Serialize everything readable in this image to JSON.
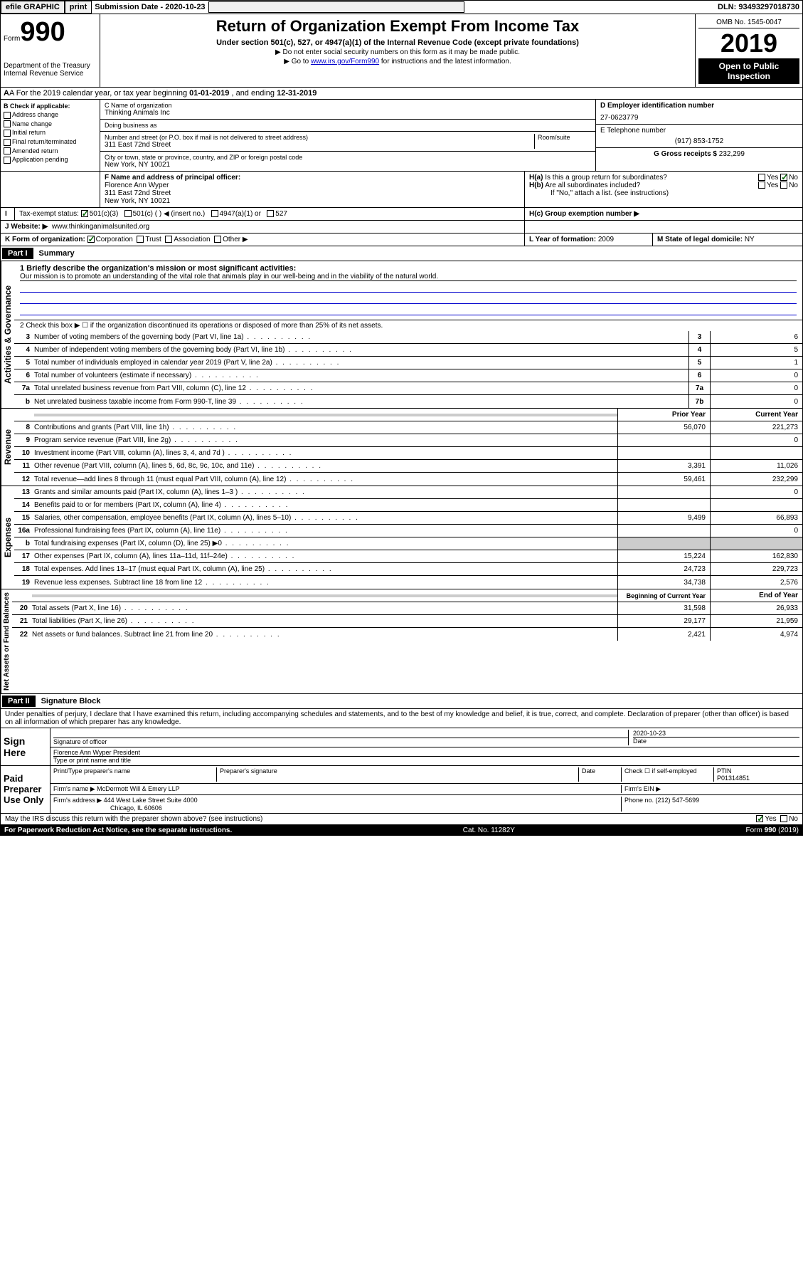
{
  "top": {
    "efile": "efile GRAPHIC",
    "print": "print",
    "sub_label": "Submission Date - ",
    "sub_date": "2020-10-23",
    "dln_label": "DLN: ",
    "dln": "93493297018730"
  },
  "header": {
    "form_label": "Form",
    "form_no": "990",
    "dept": "Department of the Treasury\nInternal Revenue Service",
    "title": "Return of Organization Exempt From Income Tax",
    "subtitle": "Under section 501(c), 527, or 4947(a)(1) of the Internal Revenue Code (except private foundations)",
    "instr1": "▶ Do not enter social security numbers on this form as it may be made public.",
    "instr2a": "▶ Go to ",
    "instr2_link": "www.irs.gov/Form990",
    "instr2b": " for instructions and the latest information.",
    "omb": "OMB No. 1545-0047",
    "year": "2019",
    "inspect": "Open to Public Inspection"
  },
  "rowA": {
    "text_a": "A For the 2019 calendar year, or tax year beginning ",
    "begin": "01-01-2019",
    "text_b": " , and ending ",
    "end": "12-31-2019"
  },
  "colB": {
    "header": "B Check if applicable:",
    "opts": [
      "Address change",
      "Name change",
      "Initial return",
      "Final return/terminated",
      "Amended return",
      "Application pending"
    ]
  },
  "colC": {
    "name_label": "C Name of organization",
    "name": "Thinking Animals Inc",
    "dba_label": "Doing business as",
    "addr_label": "Number and street (or P.O. box if mail is not delivered to street address)",
    "room_label": "Room/suite",
    "addr": "311 East 72nd Street",
    "city_label": "City or town, state or province, country, and ZIP or foreign postal code",
    "city": "New York, NY  10021"
  },
  "colD": {
    "ein_label": "D Employer identification number",
    "ein": "27-0623779",
    "phone_label": "E Telephone number",
    "phone": "(917) 853-1752",
    "gross_label": "G Gross receipts $ ",
    "gross": "232,299"
  },
  "rowF": {
    "label": "F Name and address of principal officer:",
    "name": "Florence Ann Wyper",
    "addr": "311 East 72nd Street",
    "city": "New York, NY  10021"
  },
  "rowH": {
    "a_label": "H(a)  Is this a group return for subordinates?",
    "b_label": "H(b)  Are all subordinates included?",
    "b_note": "If \"No,\" attach a list. (see instructions)",
    "c_label": "H(c)  Group exemption number ▶"
  },
  "rowI": {
    "label": "Tax-exempt status:",
    "opt1": "501(c)(3)",
    "opt2": "501(c) (   ) ◀ (insert no.)",
    "opt3": "4947(a)(1) or",
    "opt4": "527"
  },
  "rowJ": {
    "label": "J   Website: ▶",
    "val": "www.thinkinganimalsunited.org"
  },
  "rowK": {
    "label": "K Form of organization:",
    "opts": [
      "Corporation",
      "Trust",
      "Association",
      "Other ▶"
    ],
    "l_label": "L Year of formation: ",
    "l_val": "2009",
    "m_label": "M State of legal domicile: ",
    "m_val": "NY"
  },
  "part1": {
    "header": "Part I",
    "title": "Summary",
    "vert_labels": [
      "Activities & Governance",
      "Revenue",
      "Expenses",
      "Net Assets or Fund Balances"
    ],
    "line1_label": "1  Briefly describe the organization's mission or most significant activities:",
    "mission": "Our mission is to promote an understanding of the vital role that animals play in our well-being and in the viability of the natural world.",
    "line2": "2   Check this box ▶ ☐  if the organization discontinued its operations or disposed of more than 25% of its net assets.",
    "lines_gov": [
      {
        "n": "3",
        "t": "Number of voting members of the governing body (Part VI, line 1a)",
        "b": "3",
        "v": "6"
      },
      {
        "n": "4",
        "t": "Number of independent voting members of the governing body (Part VI, line 1b)",
        "b": "4",
        "v": "5"
      },
      {
        "n": "5",
        "t": "Total number of individuals employed in calendar year 2019 (Part V, line 2a)",
        "b": "5",
        "v": "1"
      },
      {
        "n": "6",
        "t": "Total number of volunteers (estimate if necessary)",
        "b": "6",
        "v": "0"
      },
      {
        "n": "7a",
        "t": "Total unrelated business revenue from Part VIII, column (C), line 12",
        "b": "7a",
        "v": "0"
      },
      {
        "n": "b",
        "t": "Net unrelated business taxable income from Form 990-T, line 39",
        "b": "7b",
        "v": "0"
      }
    ],
    "col_prior": "Prior Year",
    "col_current": "Current Year",
    "lines_rev": [
      {
        "n": "8",
        "t": "Contributions and grants (Part VIII, line 1h)",
        "p": "56,070",
        "c": "221,273"
      },
      {
        "n": "9",
        "t": "Program service revenue (Part VIII, line 2g)",
        "p": "",
        "c": "0"
      },
      {
        "n": "10",
        "t": "Investment income (Part VIII, column (A), lines 3, 4, and 7d )",
        "p": "",
        "c": ""
      },
      {
        "n": "11",
        "t": "Other revenue (Part VIII, column (A), lines 5, 6d, 8c, 9c, 10c, and 11e)",
        "p": "3,391",
        "c": "11,026"
      },
      {
        "n": "12",
        "t": "Total revenue—add lines 8 through 11 (must equal Part VIII, column (A), line 12)",
        "p": "59,461",
        "c": "232,299"
      }
    ],
    "lines_exp": [
      {
        "n": "13",
        "t": "Grants and similar amounts paid (Part IX, column (A), lines 1–3 )",
        "p": "",
        "c": "0"
      },
      {
        "n": "14",
        "t": "Benefits paid to or for members (Part IX, column (A), line 4)",
        "p": "",
        "c": ""
      },
      {
        "n": "15",
        "t": "Salaries, other compensation, employee benefits (Part IX, column (A), lines 5–10)",
        "p": "9,499",
        "c": "66,893"
      },
      {
        "n": "16a",
        "t": "Professional fundraising fees (Part IX, column (A), line 11e)",
        "p": "",
        "c": "0"
      },
      {
        "n": "b",
        "t": "Total fundraising expenses (Part IX, column (D), line 25) ▶0",
        "p": "GREY",
        "c": "GREY"
      },
      {
        "n": "17",
        "t": "Other expenses (Part IX, column (A), lines 11a–11d, 11f–24e)",
        "p": "15,224",
        "c": "162,830"
      },
      {
        "n": "18",
        "t": "Total expenses. Add lines 13–17 (must equal Part IX, column (A), line 25)",
        "p": "24,723",
        "c": "229,723"
      },
      {
        "n": "19",
        "t": "Revenue less expenses. Subtract line 18 from line 12",
        "p": "34,738",
        "c": "2,576"
      }
    ],
    "col_begin": "Beginning of Current Year",
    "col_end": "End of Year",
    "lines_net": [
      {
        "n": "20",
        "t": "Total assets (Part X, line 16)",
        "p": "31,598",
        "c": "26,933"
      },
      {
        "n": "21",
        "t": "Total liabilities (Part X, line 26)",
        "p": "29,177",
        "c": "21,959"
      },
      {
        "n": "22",
        "t": "Net assets or fund balances. Subtract line 21 from line 20",
        "p": "2,421",
        "c": "4,974"
      }
    ]
  },
  "part2": {
    "header": "Part II",
    "title": "Signature Block",
    "decl": "Under penalties of perjury, I declare that I have examined this return, including accompanying schedules and statements, and to the best of my knowledge and belief, it is true, correct, and complete. Declaration of preparer (other than officer) is based on all information of which preparer has any knowledge.",
    "sign_here": "Sign Here",
    "sig_officer": "Signature of officer",
    "date_label": "Date",
    "date_val": "2020-10-23",
    "officer_name": "Florence Ann Wyper  President",
    "type_name": "Type or print name and title",
    "paid": "Paid Preparer Use Only",
    "prep_name_label": "Print/Type preparer's name",
    "prep_sig_label": "Preparer's signature",
    "check_self": "Check ☐ if self-employed",
    "ptin_label": "PTIN",
    "ptin": "P01314851",
    "firm_name_label": "Firm's name    ▶ ",
    "firm_name": "McDermott Will & Emery LLP",
    "firm_ein_label": "Firm's EIN ▶",
    "firm_addr_label": "Firm's address ▶ ",
    "firm_addr": "444 West Lake Street Suite 4000",
    "firm_city": "Chicago, IL  60606",
    "firm_phone_label": "Phone no. ",
    "firm_phone": "(212) 547-5699",
    "discuss": "May the IRS discuss this return with the preparer shown above? (see instructions)"
  },
  "footer": {
    "paperwork": "For Paperwork Reduction Act Notice, see the separate instructions.",
    "cat": "Cat. No. 11282Y",
    "form": "Form 990 (2019)"
  }
}
